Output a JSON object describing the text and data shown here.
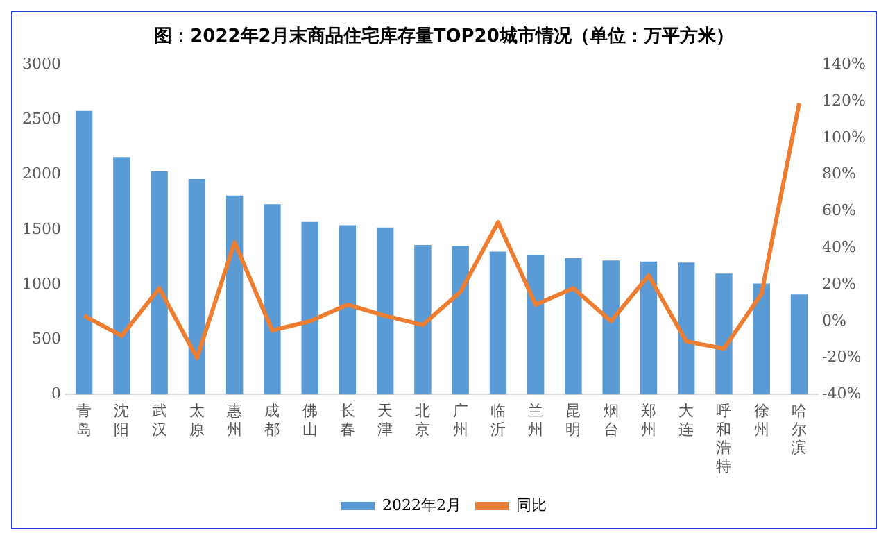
{
  "chart_data": {
    "type": "bar",
    "title": "图：2022年2月末商品住宅库存量TOP20城市情况（单位：万平方米）",
    "categories": [
      "青岛",
      "沈阳",
      "武汉",
      "太原",
      "惠州",
      "成都",
      "佛山",
      "长春",
      "天津",
      "北京",
      "广州",
      "临沂",
      "兰州",
      "昆明",
      "烟台",
      "郑州",
      "大连",
      "呼和浩特",
      "徐州",
      "哈尔滨"
    ],
    "series": [
      {
        "name": "2022年2月",
        "color": "#5b9bd5",
        "values": [
          2580,
          2160,
          2030,
          1960,
          1810,
          1730,
          1570,
          1540,
          1520,
          1360,
          1350,
          1300,
          1270,
          1240,
          1220,
          1210,
          1200,
          1100,
          1010,
          910
        ]
      },
      {
        "name": "同比",
        "type": "line",
        "axis": "y2",
        "color": "#ed7d31",
        "values": [
          3,
          -8,
          18,
          -20,
          43,
          -5,
          0,
          9,
          3,
          -2,
          16,
          54,
          9,
          18,
          0,
          25,
          -11,
          -15,
          15,
          119
        ]
      }
    ],
    "ylim": [
      0,
      3000
    ],
    "yticks": [
      0,
      500,
      1000,
      1500,
      2000,
      2500,
      3000
    ],
    "y2lim": [
      -40,
      140
    ],
    "y2ticks": [
      {
        "value": -40,
        "label": "-40%"
      },
      {
        "value": -20,
        "label": "-20%"
      },
      {
        "value": 0,
        "label": "0%"
      },
      {
        "value": 20,
        "label": "20%"
      },
      {
        "value": 40,
        "label": "40%"
      },
      {
        "value": 60,
        "label": "60%"
      },
      {
        "value": 80,
        "label": "80%"
      },
      {
        "value": 100,
        "label": "100%"
      },
      {
        "value": 120,
        "label": "120%"
      },
      {
        "value": 140,
        "label": "140%"
      }
    ],
    "grid": false,
    "legend": "bottom",
    "marker": "none"
  }
}
